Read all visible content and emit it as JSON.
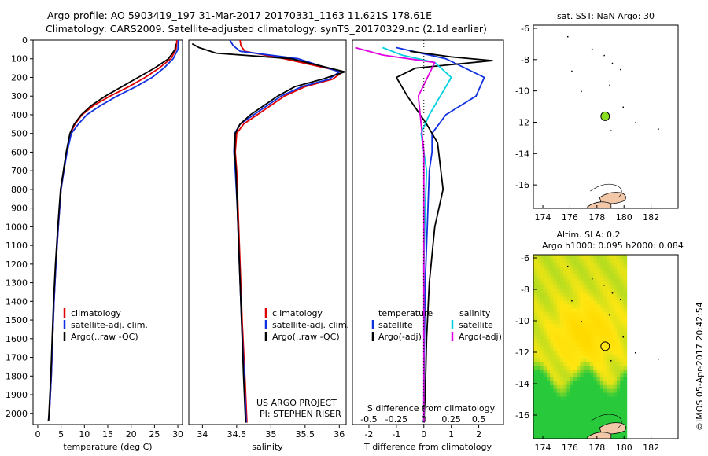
{
  "title": {
    "line1": "Argo profile: AO 5903419_197 31-Mar-2017 20170331_1163 11.621S 178.61E",
    "line2": "Climatology: CARS2009. Satellite-adjusted climatology: synTS_20170329.nc (2.1d earlier)"
  },
  "colors": {
    "climatology": "#e00000",
    "satellite": "#1030e0",
    "argo": "#000000",
    "sat_s": "#00d0e0",
    "argo_s": "#e000e0",
    "site_marker": "#88dd22",
    "land": "#f2c8a8"
  },
  "legend": {
    "climatology": "climatology",
    "satellite_adj": "satellite-adj. clim.",
    "argo": "Argo(..raw -QC)",
    "temperature_head": "temperature",
    "salinity_head": "salinity",
    "satellite": "satellite",
    "argo_adj": "Argo(-adj)"
  },
  "credits": {
    "project": "US ARGO PROJECT",
    "pi": "PI: STEPHEN RISER"
  },
  "side_label": "©IMOS 05-Apr-2017 20:42:54",
  "chart_data": [
    {
      "id": "temperature",
      "type": "line",
      "xlabel": "temperature (deg C)",
      "ylabel": "",
      "xlim": [
        -1,
        31
      ],
      "ylim": [
        2060,
        0
      ],
      "xticks": [
        "0",
        "5",
        "10",
        "15",
        "20",
        "25",
        "30"
      ],
      "xtick_values": [
        0,
        5,
        10,
        15,
        20,
        25,
        30
      ],
      "yticks": [
        "0",
        "100",
        "200",
        "300",
        "400",
        "500",
        "600",
        "700",
        "800",
        "900",
        "1000",
        "1100",
        "1200",
        "1300",
        "1400",
        "1500",
        "1600",
        "1700",
        "1800",
        "1900",
        "2000"
      ],
      "ytick_values": [
        0,
        100,
        200,
        300,
        400,
        500,
        600,
        700,
        800,
        900,
        1000,
        1100,
        1200,
        1300,
        1400,
        1500,
        1600,
        1700,
        1800,
        1900,
        2000
      ],
      "series": [
        {
          "name": "climatology",
          "color": "#e00000",
          "x": [
            29.8,
            29.6,
            28.5,
            26,
            23,
            19.5,
            15.5,
            12,
            9.5,
            8.0,
            7.0,
            6.2,
            5.6,
            5.0,
            4.4,
            3.9,
            3.5,
            3.2,
            2.9,
            2.7,
            2.5,
            2.3
          ],
          "y": [
            0,
            50,
            100,
            150,
            200,
            250,
            300,
            350,
            400,
            450,
            500,
            600,
            700,
            800,
            1000,
            1200,
            1400,
            1600,
            1800,
            1900,
            2000,
            2040
          ]
        },
        {
          "name": "satellite-adj. clim.",
          "color": "#1030e0",
          "x": [
            30.1,
            30.0,
            29.0,
            27,
            24.5,
            21,
            17,
            13.5,
            10.5,
            8.7,
            7.2,
            6.3,
            5.6,
            5.0,
            4.4,
            3.9,
            3.5,
            3.2,
            2.9,
            2.7,
            2.5,
            2.3
          ],
          "y": [
            0,
            50,
            100,
            150,
            200,
            250,
            300,
            350,
            400,
            450,
            500,
            600,
            700,
            800,
            1000,
            1200,
            1400,
            1600,
            1800,
            1900,
            2000,
            2040
          ]
        },
        {
          "name": "Argo(..raw -QC)",
          "color": "#000000",
          "x": [
            29.5,
            29.4,
            28.0,
            25,
            21.5,
            18,
            14.5,
            11.5,
            9.3,
            7.8,
            6.9,
            6.1,
            5.5,
            4.9,
            4.3,
            3.8,
            3.4,
            3.1,
            2.8,
            2.6,
            2.4,
            2.3
          ],
          "y": [
            20,
            50,
            100,
            150,
            200,
            250,
            300,
            350,
            400,
            450,
            500,
            600,
            700,
            800,
            1000,
            1200,
            1400,
            1600,
            1800,
            1900,
            2000,
            2040
          ]
        }
      ]
    },
    {
      "id": "salinity",
      "type": "line",
      "xlabel": "salinity",
      "ylabel": "",
      "xlim": [
        33.8,
        36.1
      ],
      "ylim": [
        2060,
        0
      ],
      "xticks": [
        "34",
        "34.5",
        "35",
        "35.5",
        "36"
      ],
      "xtick_values": [
        34,
        34.5,
        35,
        35.5,
        36
      ],
      "series": [
        {
          "name": "climatology",
          "color": "#e00000",
          "x": [
            34.55,
            34.56,
            34.62,
            35.2,
            36.05,
            35.9,
            35.5,
            35.2,
            35.0,
            34.8,
            34.6,
            34.5,
            34.48,
            34.5,
            34.52,
            34.55,
            34.58,
            34.62,
            34.65
          ],
          "y": [
            0,
            30,
            60,
            100,
            170,
            210,
            250,
            300,
            350,
            400,
            450,
            500,
            600,
            700,
            900,
            1200,
            1500,
            1800,
            2050
          ]
        },
        {
          "name": "satellite-adj. clim.",
          "color": "#1030e0",
          "x": [
            34.4,
            34.45,
            34.55,
            35.4,
            36.0,
            35.85,
            35.45,
            35.15,
            34.95,
            34.75,
            34.55,
            34.47,
            34.46,
            34.48,
            34.51,
            34.54,
            34.57,
            34.61,
            34.64
          ],
          "y": [
            0,
            30,
            60,
            100,
            170,
            210,
            250,
            300,
            350,
            400,
            450,
            500,
            600,
            700,
            900,
            1200,
            1500,
            1800,
            2050
          ]
        },
        {
          "name": "Argo(..raw -QC)",
          "color": "#000000",
          "x": [
            33.85,
            33.95,
            34.2,
            35.3,
            36.08,
            35.75,
            35.35,
            35.1,
            34.9,
            34.7,
            34.55,
            34.48,
            34.47,
            34.49,
            34.51,
            34.54,
            34.57,
            34.6,
            34.63
          ],
          "y": [
            20,
            40,
            70,
            100,
            170,
            210,
            250,
            300,
            350,
            400,
            450,
            500,
            600,
            700,
            900,
            1200,
            1500,
            1800,
            2050
          ]
        }
      ]
    },
    {
      "id": "difference",
      "type": "line",
      "xlabel": "T difference from climatology",
      "top_label": "S difference from climatology",
      "xlim": [
        -2.6,
        2.9
      ],
      "ylim": [
        2060,
        0
      ],
      "xticks": [
        "-2",
        "-1",
        "0",
        "1",
        "2"
      ],
      "xtick_values": [
        -2,
        -1,
        0,
        1,
        2
      ],
      "sticks": [
        "-0.5",
        "-0.25",
        "0",
        "0.25",
        "0.5"
      ],
      "stick_positions": [
        -2,
        -1,
        0,
        1,
        2
      ],
      "series": [
        {
          "name": "temperature satellite",
          "color": "#1030e0",
          "x": [
            -1.0,
            0.8,
            2.2,
            1.9,
            0.8,
            0.3,
            0.3,
            0.2,
            0.15,
            0.1,
            0.05,
            0.02,
            0.0,
            0.0
          ],
          "y": [
            40,
            100,
            200,
            300,
            400,
            500,
            600,
            700,
            900,
            1100,
            1300,
            1600,
            1900,
            2050
          ]
        },
        {
          "name": "temperature Argo(-adj)",
          "color": "#000000",
          "x": [
            -0.5,
            1.0,
            2.5,
            -0.3,
            -1.0,
            -0.6,
            0.1,
            0.5,
            0.7,
            0.4,
            0.2,
            0.1,
            0.05,
            0.0
          ],
          "y": [
            60,
            90,
            110,
            150,
            200,
            300,
            450,
            550,
            800,
            1000,
            1300,
            1600,
            1900,
            2050
          ]
        },
        {
          "name": "salinity satellite",
          "color": "#00d0e0",
          "x": [
            -1.5,
            -0.8,
            0.4,
            1.0,
            0.6,
            0.2,
            -0.1,
            0.0,
            0.1,
            0.05,
            0.0,
            0.0,
            0.0
          ],
          "y": [
            40,
            80,
            120,
            200,
            300,
            400,
            500,
            600,
            700,
            900,
            1200,
            1600,
            2050
          ]
        },
        {
          "name": "salinity Argo(-adj)",
          "color": "#e000e0",
          "x": [
            -2.5,
            -1.5,
            0.4,
            -0.2,
            0.0,
            0.0,
            0.0,
            0.0,
            0.0
          ],
          "y": [
            40,
            80,
            120,
            300,
            600,
            900,
            1300,
            1700,
            2050
          ]
        }
      ]
    },
    {
      "id": "sst_map",
      "type": "scatter",
      "title": "sat. SST: NaN Argo: 30",
      "xlim": [
        173.3,
        184
      ],
      "ylim": [
        -17.5,
        -5.8
      ],
      "xticks": [
        "174",
        "176",
        "178",
        "180",
        "182"
      ],
      "xtick_values": [
        174,
        176,
        178,
        180,
        182
      ],
      "yticks": [
        "-6",
        "-8",
        "-10",
        "-12",
        "-14",
        "-16"
      ],
      "ytick_values": [
        -6,
        -8,
        -10,
        -12,
        -14,
        -16
      ],
      "point": {
        "x": 178.61,
        "y": -11.621
      }
    },
    {
      "id": "sla_map",
      "type": "heatmap",
      "title": "Altim. SLA: 0.2",
      "subtitle": "Argo h1000: 0.095 h2000: 0.084",
      "xlim": [
        173.3,
        184
      ],
      "ylim": [
        -17.5,
        -5.8
      ],
      "xticks": [
        "174",
        "176",
        "178",
        "180",
        "182"
      ],
      "xtick_values": [
        174,
        176,
        178,
        180,
        182
      ],
      "yticks": [
        "-6",
        "-8",
        "-10",
        "-12",
        "-14",
        "-16"
      ],
      "ytick_values": [
        -6,
        -8,
        -10,
        -12,
        -14,
        -16
      ],
      "point": {
        "x": 178.61,
        "y": -11.621
      }
    }
  ]
}
